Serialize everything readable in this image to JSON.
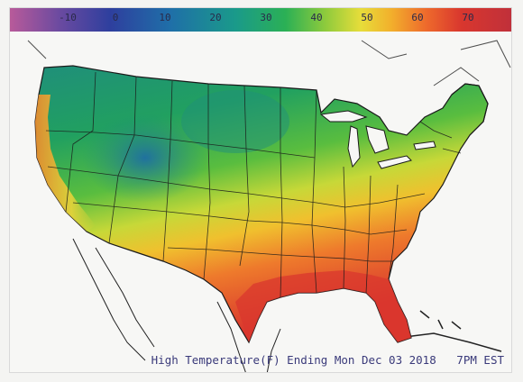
{
  "legend": {
    "ticks": [
      "-10",
      "0",
      "10",
      "20",
      "30",
      "40",
      "50",
      "60",
      "70"
    ]
  },
  "caption": "High Temperature(F) Ending Mon Dec 03 2018   7PM EST",
  "colors": {
    "cold": "#1f6fa8",
    "cool": "#2bb055",
    "mild": "#e7dd3a",
    "warm": "#ee6a2c",
    "hot": "#d9372e"
  }
}
